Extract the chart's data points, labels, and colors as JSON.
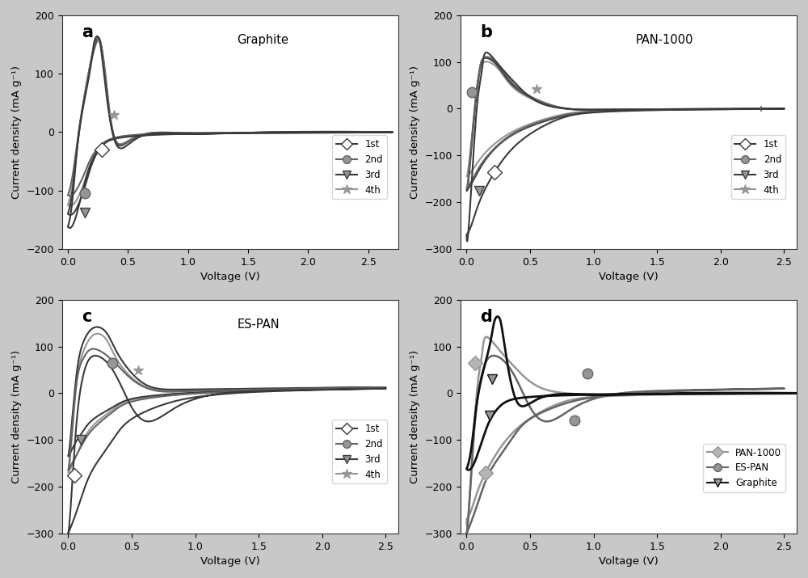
{
  "fig_width": 10.0,
  "fig_height": 7.15,
  "dpi": 100,
  "bg_color": "#c8c8c8",
  "plot_bg": "#ffffff",
  "panel_labels": [
    "a",
    "b",
    "c",
    "d"
  ],
  "panel_titles": [
    "Graphite",
    "PAN-1000",
    "ES-PAN",
    ""
  ],
  "legend_labels_abc": [
    "1st",
    "2nd",
    "3rd",
    "4th"
  ],
  "legend_labels_d": [
    "PAN-1000",
    "ES-PAN",
    "Graphite"
  ],
  "ylabel": "Current density (mA g⁻¹)",
  "xlabel": "Voltage (V)",
  "xlim_a": [
    -0.05,
    2.75
  ],
  "xlim_bcd": [
    -0.05,
    2.6
  ],
  "ylim_a": [
    -200,
    200
  ],
  "ylim_bcd": [
    -300,
    200
  ],
  "yticks_a": [
    -200,
    -100,
    0,
    100,
    200
  ],
  "yticks_bcd": [
    -300,
    -200,
    -100,
    0,
    100,
    200
  ],
  "xticks_a": [
    0.0,
    0.5,
    1.0,
    1.5,
    2.0,
    2.5
  ],
  "xticks_bcd": [
    0.0,
    0.5,
    1.0,
    1.5,
    2.0,
    2.5
  ],
  "marker_size": 9,
  "lw": 1.5,
  "gray1": "#3a3a3a",
  "gray2": "#646464",
  "gray3": "#969696",
  "gray4": "#b4b4b4"
}
